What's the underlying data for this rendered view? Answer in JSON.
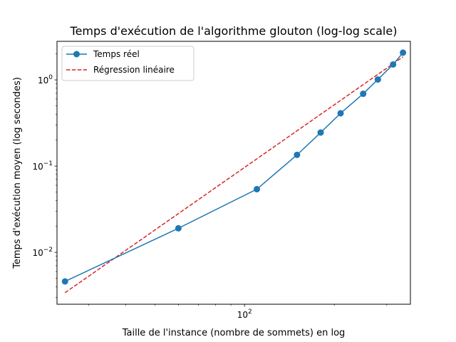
{
  "chart_data": {
    "type": "line",
    "title": "Temps d'exécution de l'algorithme glouton (log-log scale)",
    "xlabel": "Taille de l'instance (nombre de sommets) en log",
    "ylabel": "Temps d'exécution moyen (log secondes)",
    "xscale": "log",
    "yscale": "log",
    "xlim": [
      23.5,
      360
    ],
    "ylim": [
      0.0025,
      2.8
    ],
    "grid": false,
    "legend_position": "top-left",
    "x_tick_labels": [
      {
        "value": 100,
        "base": "10",
        "exp": "2"
      }
    ],
    "y_tick_labels": [
      {
        "value": 0.01,
        "base": "10",
        "exp": "−2"
      },
      {
        "value": 0.1,
        "base": "10",
        "exp": "−1"
      },
      {
        "value": 1,
        "base": "10",
        "exp": "0"
      }
    ],
    "series": [
      {
        "name": "Temps réel",
        "style": "solid",
        "marker": "circle",
        "color": "#1f77b4",
        "x": [
          25,
          60,
          110,
          150,
          180,
          210,
          250,
          280,
          315,
          340
        ],
        "y": [
          0.0046,
          0.019,
          0.054,
          0.135,
          0.245,
          0.41,
          0.69,
          1.01,
          1.51,
          2.07
        ]
      },
      {
        "name": "Régression linéaire",
        "style": "dashed",
        "marker": "none",
        "color": "#d62728",
        "x": [
          25,
          340
        ],
        "y": [
          0.0034,
          1.85
        ]
      }
    ]
  }
}
